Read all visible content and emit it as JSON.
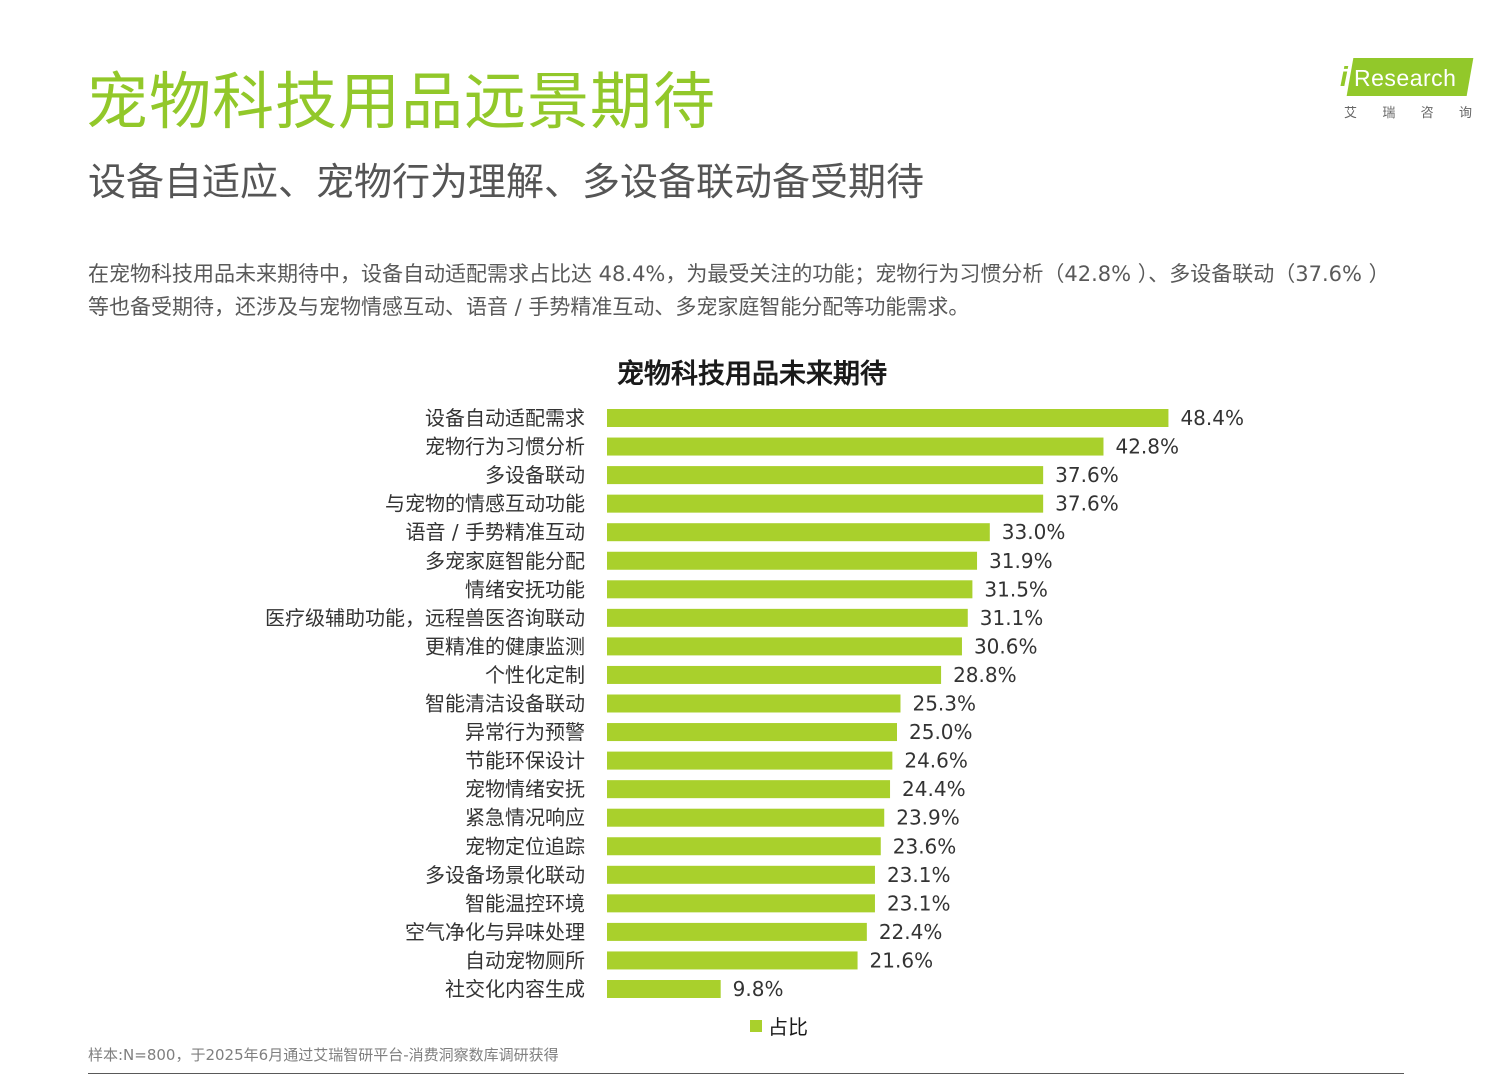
{
  "header": {
    "title": "宠物科技用品远景期待",
    "subtitle": "设备自适应、宠物行为理解、多设备联动备受期待"
  },
  "description": "在宠物科技用品未来期待中，设备自动适配需求占比达 48.4%，为最受关注的功能；宠物行为习惯分析（42.8% ）、多设备联动（37.6% ）等也备受期待，还涉及与宠物情感互动、语音 / 手势精准互动、多宠家庭智能分配等功能需求。",
  "logo": {
    "letter": "i",
    "word": "Research",
    "cn": [
      "艾",
      "瑞",
      "咨",
      "询"
    ]
  },
  "footnote": "样本:N=800，于2025年6月通过艾瑞智研平台-消费洞察数库调研获得",
  "colors": {
    "brand_green": "#92c82a",
    "bar": "#a9d02c",
    "text_dark": "#1a1a1a",
    "text_gray": "#595959"
  },
  "chart_data": {
    "type": "bar",
    "orientation": "horizontal",
    "title": "宠物科技用品未来期待",
    "categories": [
      "设备自动适配需求",
      "宠物行为习惯分析",
      "多设备联动",
      "与宠物的情感互动功能",
      "语音 / 手势精准互动",
      "多宠家庭智能分配",
      "情绪安抚功能",
      "医疗级辅助功能，远程兽医咨询联动",
      "更精准的健康监测",
      "个性化定制",
      "智能清洁设备联动",
      "异常行为预警",
      "节能环保设计",
      "宠物情绪安抚",
      "紧急情况响应",
      "宠物定位追踪",
      "多设备场景化联动",
      "智能温控环境",
      "空气净化与异味处理",
      "自动宠物厕所",
      "社交化内容生成"
    ],
    "series": [
      {
        "name": "占比",
        "values": [
          48.4,
          42.8,
          37.6,
          37.6,
          33.0,
          31.9,
          31.5,
          31.1,
          30.6,
          28.8,
          25.3,
          25.0,
          24.6,
          24.4,
          23.9,
          23.6,
          23.1,
          23.1,
          22.4,
          21.6,
          9.8
        ],
        "labels": [
          "48.4%",
          "42.8%",
          "37.6%",
          "37.6%",
          "33.0%",
          "31.9%",
          "31.5%",
          "31.1%",
          "30.6%",
          "28.8%",
          "25.3%",
          "25.0%",
          "24.6%",
          "24.4%",
          "23.9%",
          "23.6%",
          "23.1%",
          "23.1%",
          "22.4%",
          "21.6%",
          "9.8%"
        ]
      }
    ],
    "xlim": [
      0,
      50
    ],
    "grid": false,
    "legend": "bottom-center"
  }
}
